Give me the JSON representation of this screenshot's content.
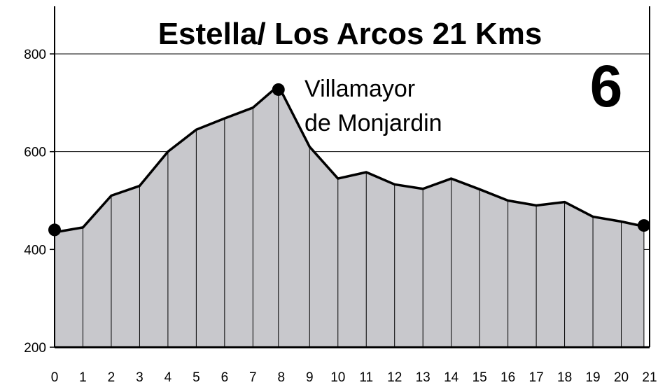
{
  "chart_data": {
    "type": "area",
    "title": "Estella/ Los Arcos 21 Kms",
    "stage_number": "6",
    "xlabel": "",
    "ylabel": "",
    "xlim": [
      0,
      21
    ],
    "ylim": [
      200,
      900
    ],
    "x_ticks": [
      "0",
      "1",
      "2",
      "3",
      "4",
      "5",
      "6",
      "7",
      "8",
      "9",
      "10",
      "11",
      "12",
      "13",
      "14",
      "15",
      "16",
      "17",
      "18",
      "19",
      "20",
      "21"
    ],
    "y_ticks": [
      "200",
      "400",
      "600",
      "800"
    ],
    "grid": true,
    "series": [
      {
        "x": [
          0,
          1,
          2,
          3,
          4,
          5,
          6,
          7,
          7.9,
          9,
          10,
          11,
          12,
          13,
          14,
          15,
          16,
          17,
          18,
          19,
          20,
          20.8
        ],
        "values": [
          435,
          445,
          510,
          530,
          600,
          645,
          668,
          690,
          735,
          610,
          545,
          558,
          533,
          524,
          545,
          523,
          500,
          490,
          497,
          467,
          457,
          447
        ]
      }
    ],
    "markers": [
      {
        "x": 0,
        "y": 440
      },
      {
        "x": 7.9,
        "y": 727
      },
      {
        "x": 20.8,
        "y": 449
      }
    ],
    "annotations": [
      {
        "text": "Villamayor",
        "x": 9,
        "y": 735
      },
      {
        "text": "de Monjardin",
        "x": 9,
        "y": 660
      }
    ],
    "colors": {
      "fill": "#c8c8cc",
      "line": "#000000",
      "grid": "#000000"
    }
  }
}
